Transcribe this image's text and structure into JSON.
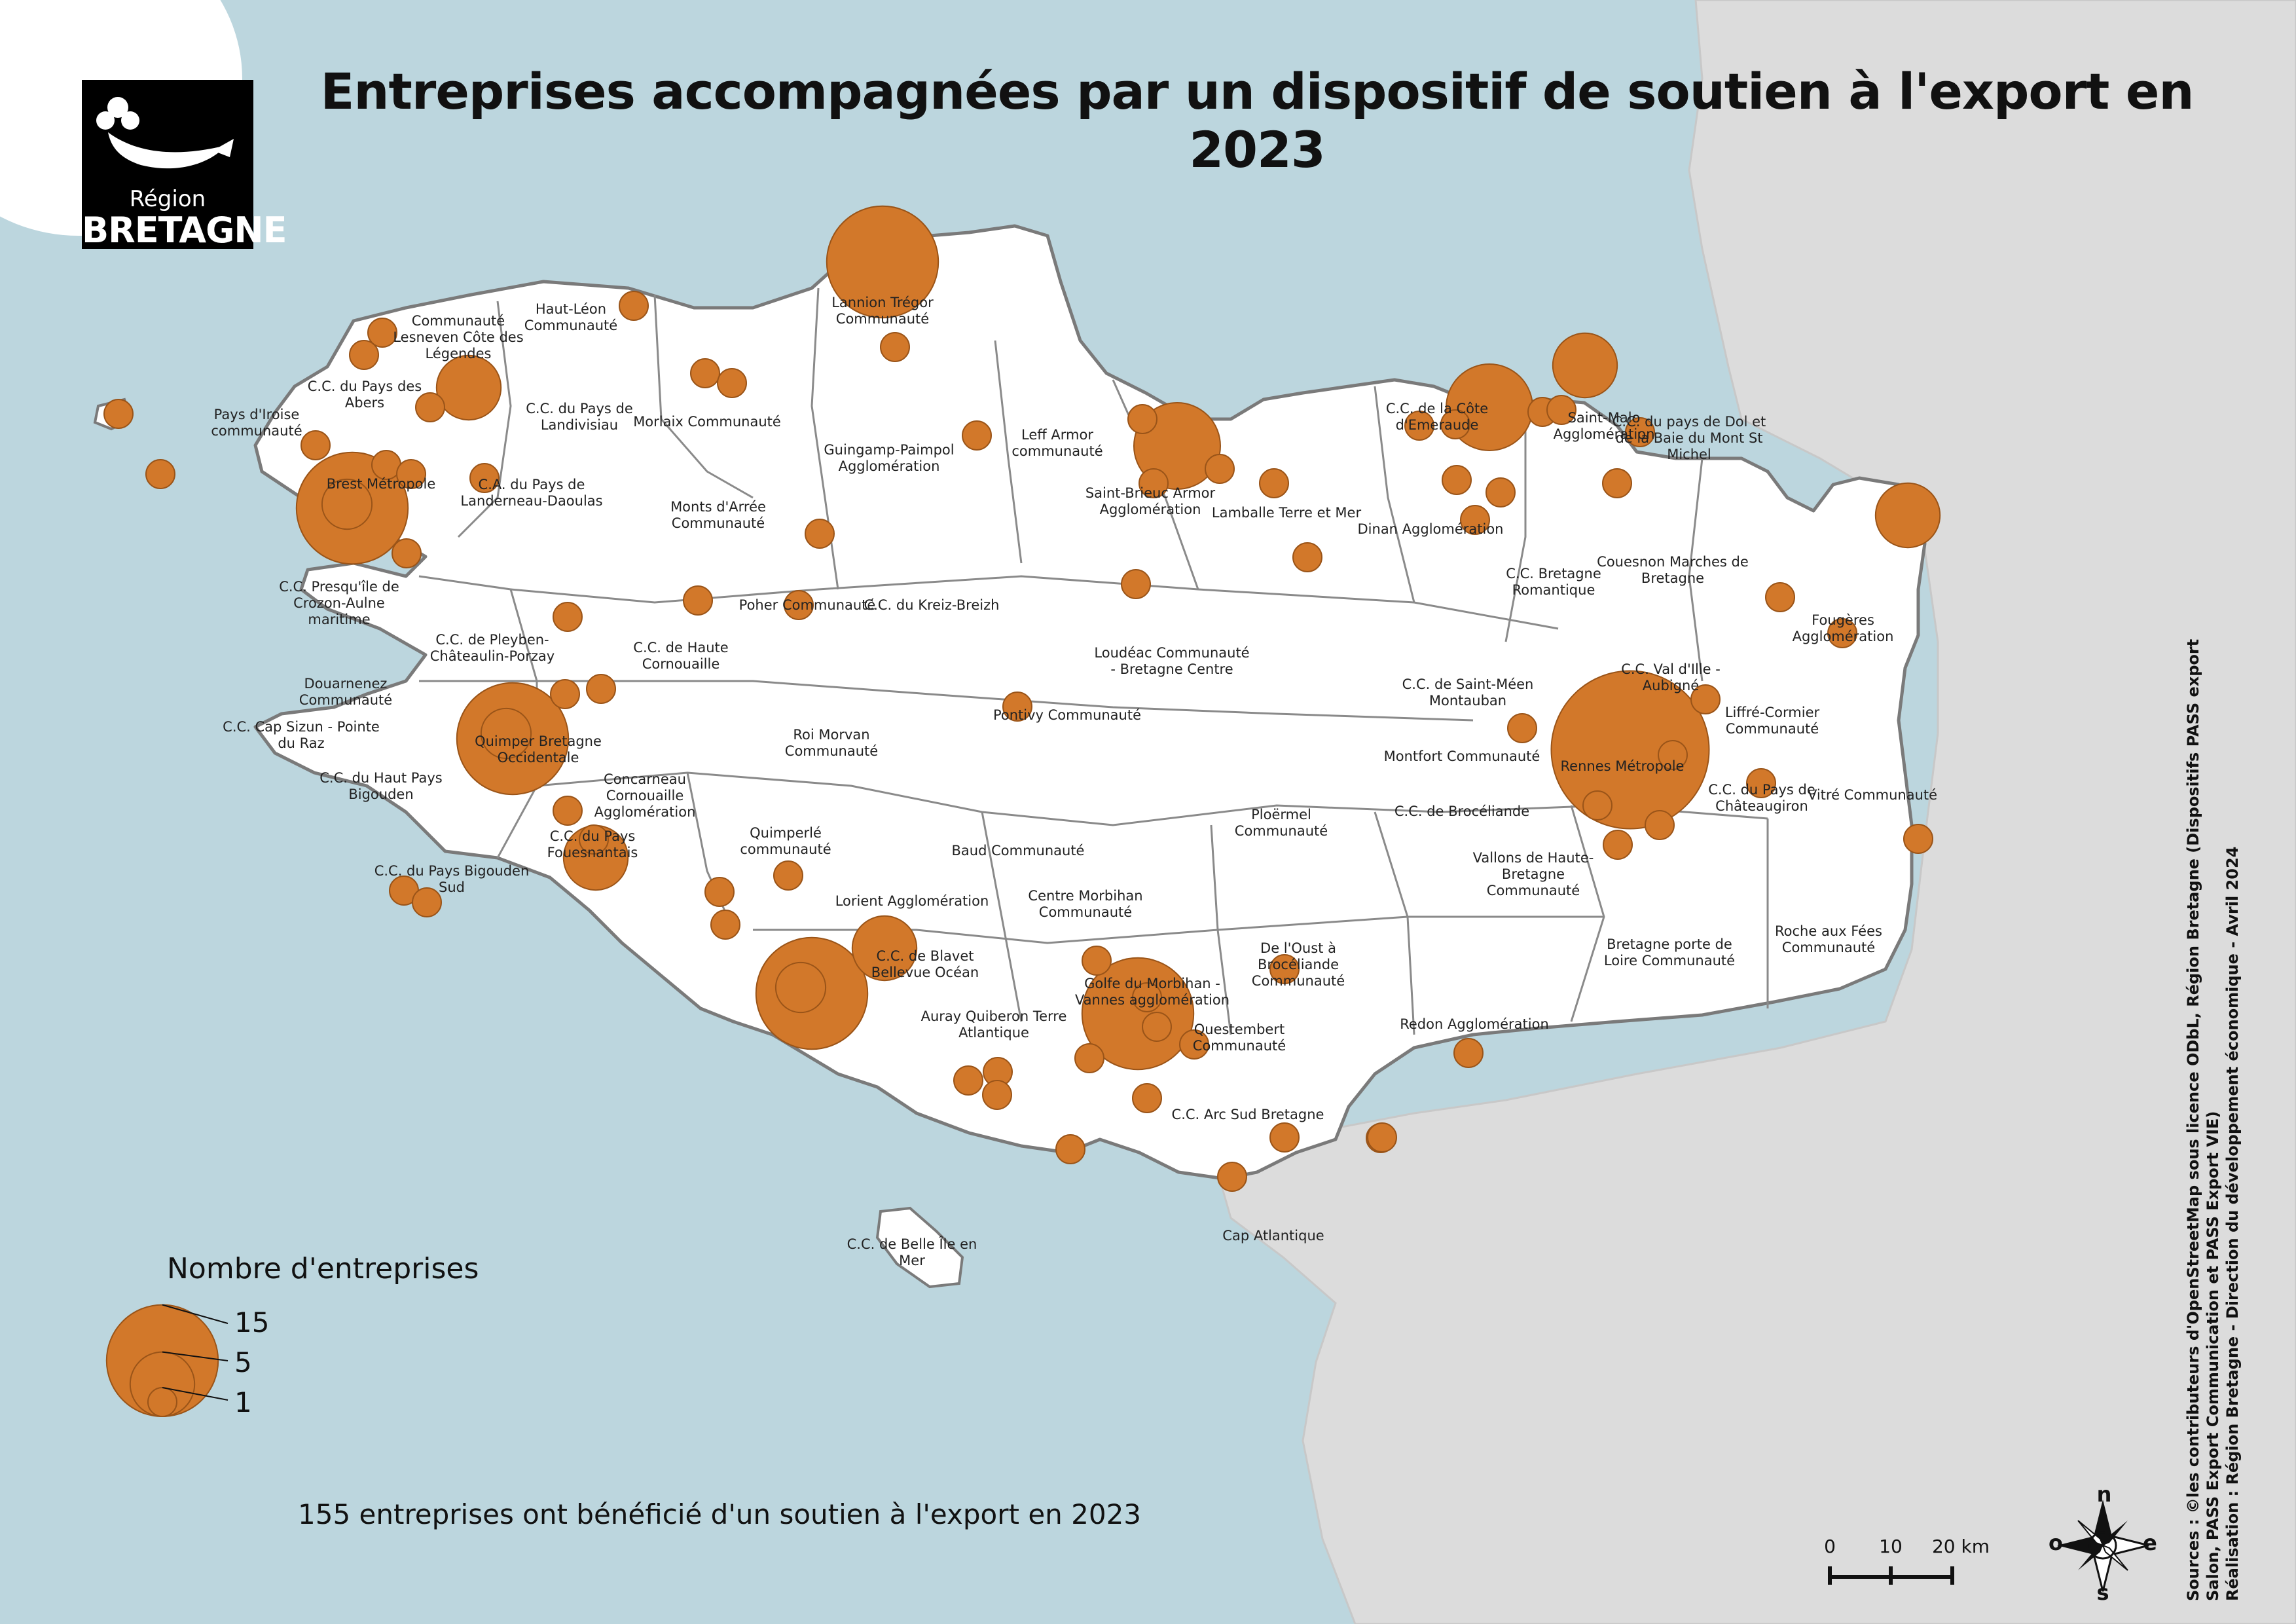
{
  "title": "Entreprises accompagnées par un dispositif de soutien à l'export en 2023",
  "logo": {
    "line1": "Région",
    "line2": "BRETAGNE"
  },
  "colors": {
    "sea": "#bcd6de",
    "land_bretagne": "#ffffff",
    "land_other": "#dcdcdc",
    "bubble": "#d2782a",
    "bubble_stroke": "#9a5418",
    "border": "#808080"
  },
  "legend": {
    "title": "Nombre d'entreprises",
    "values": [
      "15",
      "5",
      "1"
    ]
  },
  "summary": "155 entreprises ont bénéficié d'un soutien à l'export en 2023",
  "scale": {
    "labels": [
      "0",
      "10",
      "20 km"
    ]
  },
  "compass": {
    "n": "n",
    "e": "e",
    "s": "s",
    "w": "o"
  },
  "sources": [
    "Sources : ©les contributeurs d'OpenStreetMap sous licence ODbL, Région Bretagne (Dispositifs PASS export",
    "Salon, PASS Export Communication et PASS Export VIE)",
    "Réalisation : Région Bretagne - Direction du développement économique - Avril 2024"
  ],
  "territories": [
    "Lannion Trégor Communauté",
    "Haut-Léon Communauté",
    "Communauté Lesneven Côte des Légendes",
    "C.C. du Pays des Abers",
    "Pays d'Iroise communauté",
    "C.C. du Pays de Landivisiau",
    "Morlaix Communauté",
    "Brest Métropole",
    "C.A. du Pays de Landerneau-Daoulas",
    "Guingamp-Paimpol Agglomération",
    "Leff Armor communauté",
    "Monts d'Arrée Communauté",
    "Saint-Brieuc Armor Agglomération",
    "Lamballe Terre et Mer",
    "C.C. de la Côte d'Emeraude",
    "Saint-Malo Agglomération",
    "C.C. du pays de Dol et de la Baie du Mont St Michel",
    "Dinan Agglomération",
    "C.C. Presqu'île de Crozon-Aulne maritime",
    "Poher Communauté",
    "C.C. du Kreiz-Breizh",
    "C.C. de Pleyben-Châteaulin-Porzay",
    "C.C. de Haute Cornouaille",
    "Loudéac Communauté - Bretagne Centre",
    "C.C. Bretagne Romantique",
    "Couesnon Marches de Bretagne",
    "Fougères Agglomération",
    "Douarnenez Communauté",
    "C.C. Cap Sizun - Pointe du Raz",
    "Quimper Bretagne Occidentale",
    "Roi Morvan Communauté",
    "Pontivy Communauté",
    "C.C. de Saint-Méen Montauban",
    "C.C. Val d'Ille - Aubigné",
    "Liffré-Cormier Communauté",
    "C.C. du Haut Pays Bigouden",
    "Concarneau Cornouaille Agglomération",
    "Montfort Communauté",
    "Rennes Métropole",
    "C.C. du Pays de Châteaugiron",
    "Vitré Communauté",
    "C.C. du Pays Fouesnantais",
    "Quimperlé communauté",
    "Baud Communauté",
    "Ploërmel Communauté",
    "C.C. de Brocéliande",
    "C.C. du Pays Bigouden Sud",
    "Vallons de Haute-Bretagne Communauté",
    "Lorient Agglomération",
    "Centre Morbihan Communauté",
    "Roche aux Fées Communauté",
    "C.C. de Blavet Bellevue Océan",
    "De l'Oust à Brocéliande Communauté",
    "Bretagne porte de Loire Communauté",
    "Auray Quiberon Terre Atlantique",
    "Golfe du Morbihan - Vannes agglomération",
    "Questembert Communauté",
    "Redon Agglomération",
    "C.C. Arc Sud Bretagne",
    "Cap Atlantique",
    "C.C. de Belle Île en Mer"
  ]
}
